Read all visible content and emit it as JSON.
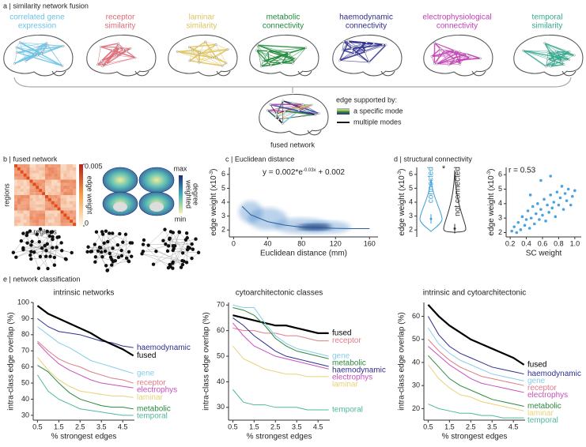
{
  "panels": {
    "a": {
      "title": "a | similarity network fusion",
      "modes": [
        {
          "label": [
            "correlated gene",
            "expression"
          ],
          "color": "#6cc3e6"
        },
        {
          "label": [
            "receptor",
            "similarity"
          ],
          "color": "#dd6b78"
        },
        {
          "label": [
            "laminar",
            "similarity"
          ],
          "color": "#dfc35f"
        },
        {
          "label": [
            "metabolic",
            "connectivity"
          ],
          "color": "#1f8a3a"
        },
        {
          "label": [
            "haemodynamic",
            "connectivity"
          ],
          "color": "#2e2e90"
        },
        {
          "label": [
            "electrophysiological",
            "connectivity"
          ],
          "color": "#c23fb3"
        },
        {
          "label": [
            "temporal",
            "similarity"
          ],
          "color": "#35a88e"
        }
      ],
      "legend_title": "edge supported by:",
      "legend_items": [
        "a specific mode",
        "multiple modes"
      ],
      "fused_label": "fused network"
    },
    "b": {
      "title": "b | fused network",
      "matrix_axis_labels": [
        "regions",
        "regions"
      ],
      "colorbar_label": "edge weight",
      "clim": [
        0,
        0.005
      ],
      "colorbar_ticks": [
        0,
        0.005
      ],
      "degree_label": [
        "weighted",
        "degree"
      ],
      "degree_ticks": [
        "max",
        "min"
      ]
    },
    "d": {
      "title": "d | structural connectivity"
    },
    "e": {
      "title": "e | network classification"
    }
  },
  "chart_data": [
    {
      "type": "line",
      "title": "c | Euclidean distance",
      "equation": [
        "y = 0.002*e",
        "-0.03x",
        " + 0.002"
      ],
      "xlabel": "Euclidean distance (mm)",
      "ylabel": [
        "edge weight (x10",
        "-3",
        ")"
      ],
      "xlim": [
        -5,
        170
      ],
      "ylim": [
        1.5,
        6.5
      ],
      "xticks": [
        0,
        40,
        80,
        120,
        160
      ],
      "yticks": [
        2,
        3,
        4,
        5,
        6
      ],
      "x": [
        10,
        20,
        40,
        60,
        80,
        100,
        120,
        140,
        160
      ],
      "series": [
        {
          "color": "#2b5f9e",
          "values": [
            3.7,
            3.1,
            2.6,
            2.35,
            2.2,
            2.15,
            2.12,
            2.1,
            2.1
          ]
        }
      ]
    },
    {
      "type": "violin",
      "ylabel": [
        "edge weight (x10",
        "-3",
        ")"
      ],
      "ylim": [
        1.5,
        6.5
      ],
      "yticks": [
        2,
        3,
        4,
        5,
        6
      ],
      "annotation": "*",
      "series": [
        {
          "name": "connected",
          "color": "#3a9fd8",
          "median": 2.8,
          "min": 1.9,
          "max": 5.7
        },
        {
          "name": "not connected",
          "color": "#333333",
          "median": 2.1,
          "min": 1.8,
          "max": 6.3
        }
      ]
    },
    {
      "type": "scatter",
      "annotation": "r = 0.53",
      "xlabel": "SC weight",
      "ylabel": [
        "edge weight (x10",
        "-3",
        ")"
      ],
      "xlim": [
        0.15,
        1.08
      ],
      "ylim": [
        1.7,
        6.5
      ],
      "xticks": [
        0.2,
        0.4,
        0.6,
        0.8,
        {
          "value": 1,
          "label": "1.0"
        }
      ],
      "yticks": [
        2,
        3,
        4,
        5,
        6
      ],
      "color": "#4aa3e0",
      "x": [
        0.22,
        0.25,
        0.28,
        0.3,
        0.33,
        0.35,
        0.38,
        0.4,
        0.42,
        0.44,
        0.46,
        0.48,
        0.5,
        0.52,
        0.54,
        0.56,
        0.58,
        0.6,
        0.62,
        0.64,
        0.66,
        0.68,
        0.7,
        0.72,
        0.74,
        0.76,
        0.78,
        0.8,
        0.82,
        0.84,
        0.86,
        0.88,
        0.9,
        0.92,
        0.95,
        0.97,
        1.0,
        0.58,
        0.45,
        0.7
      ],
      "values": [
        2.1,
        2.4,
        2.0,
        2.7,
        2.2,
        3.1,
        2.5,
        2.9,
        3.5,
        2.3,
        3.0,
        3.8,
        2.6,
        3.3,
        4.0,
        2.9,
        3.6,
        3.2,
        4.3,
        2.8,
        3.9,
        3.4,
        4.6,
        3.7,
        4.1,
        3.1,
        4.8,
        3.9,
        4.4,
        5.2,
        3.6,
        4.7,
        4.2,
        5.0,
        3.9,
        4.5,
        4.9,
        5.6,
        4.6,
        5.9
      ]
    },
    {
      "type": "line",
      "title": "intrinsic networks",
      "xlabel": "% strongest edges",
      "ylabel": "intra-class edge overlap (%)",
      "xlim": [
        0.3,
        5.05
      ],
      "ylim": [
        27,
        100
      ],
      "xticks": [
        0.5,
        1.5,
        2.5,
        3.5,
        4.5
      ],
      "yticks": [
        30,
        40,
        50,
        60,
        70,
        80,
        90,
        100
      ],
      "x": [
        0.5,
        1,
        1.5,
        2,
        2.5,
        3,
        3.5,
        4,
        4.5,
        5
      ],
      "series": [
        {
          "name": "haemodynamic",
          "color": "#2e2e90",
          "linewidth": 1,
          "values": [
            90,
            85,
            82,
            81,
            80,
            78,
            76,
            75,
            73,
            72
          ]
        },
        {
          "name": "fused",
          "color": "#000000",
          "linewidth": 2.2,
          "values": [
            98,
            93,
            90,
            87,
            84,
            81,
            77,
            74,
            71,
            67
          ]
        },
        {
          "name": "gene",
          "color": "#86cde8",
          "linewidth": 1,
          "values": [
            85,
            80,
            75,
            72,
            68,
            64,
            62,
            60,
            58,
            56
          ]
        },
        {
          "name": "receptor",
          "color": "#e07b87",
          "linewidth": 1,
          "values": [
            76,
            70,
            65,
            62,
            60,
            57,
            55,
            53,
            52,
            50
          ]
        },
        {
          "name": "electrophys",
          "color": "#c94fbb",
          "linewidth": 1,
          "values": [
            75,
            68,
            62,
            58,
            55,
            52,
            50,
            49,
            48,
            47
          ]
        },
        {
          "name": "laminar",
          "color": "#e8d27a",
          "linewidth": 1,
          "values": [
            66,
            58,
            52,
            48,
            45,
            44,
            43,
            42,
            42,
            41
          ]
        },
        {
          "name": "metabolic",
          "color": "#2c8a3f",
          "linewidth": 1,
          "values": [
            61,
            57,
            50,
            44,
            40,
            38,
            36,
            35,
            35,
            34
          ]
        },
        {
          "name": "temporal",
          "color": "#4fb89e",
          "linewidth": 1,
          "values": [
            55,
            45,
            40,
            37,
            34,
            33,
            32,
            31,
            30,
            30
          ]
        }
      ]
    },
    {
      "type": "line",
      "title": "cytoarchitectonic classes",
      "xlabel": "% strongest edges",
      "ylabel": "intra-class edge overlap (%)",
      "xlim": [
        0.3,
        5.05
      ],
      "ylim": [
        25,
        71
      ],
      "xticks": [
        0.5,
        1.5,
        2.5,
        3.5,
        4.5
      ],
      "yticks": [
        30,
        40,
        50,
        60,
        70
      ],
      "x": [
        0.5,
        1,
        1.5,
        2,
        2.5,
        3,
        3.5,
        4,
        4.5,
        5
      ],
      "series": [
        {
          "name": "fused",
          "color": "#000000",
          "linewidth": 2.2,
          "values": [
            66,
            65,
            64,
            63,
            62,
            62,
            61,
            60,
            59,
            59
          ]
        },
        {
          "name": "receptor",
          "color": "#e07b87",
          "linewidth": 1,
          "values": [
            61,
            60,
            60,
            59,
            59,
            58,
            58,
            57,
            56,
            56
          ]
        },
        {
          "name": "gene",
          "color": "#86cde8",
          "linewidth": 1,
          "values": [
            70,
            69,
            69,
            63,
            58,
            55,
            53,
            52,
            51,
            50
          ]
        },
        {
          "name": "metabolic",
          "color": "#2c8a3f",
          "linewidth": 1,
          "values": [
            69,
            68,
            66,
            62,
            57,
            54,
            52,
            51,
            50,
            49
          ]
        },
        {
          "name": "haemodynamic",
          "color": "#2e2e90",
          "linewidth": 1,
          "values": [
            65,
            62,
            58,
            55,
            52,
            50,
            49,
            48,
            47,
            46
          ]
        },
        {
          "name": "electrophys",
          "color": "#c94fbb",
          "linewidth": 1,
          "values": [
            63,
            58,
            54,
            52,
            50,
            49,
            48,
            47,
            46,
            45
          ]
        },
        {
          "name": "laminar",
          "color": "#e8d27a",
          "linewidth": 1,
          "values": [
            54,
            49,
            47,
            45,
            44,
            43,
            43,
            42,
            42,
            42
          ]
        },
        {
          "name": "temporal",
          "color": "#4fb89e",
          "linewidth": 1,
          "values": [
            37,
            32,
            31,
            31,
            30,
            30,
            30,
            29,
            29,
            29
          ]
        }
      ]
    },
    {
      "type": "line",
      "title": "intrinsic and cytoarchitectonic",
      "xlabel": "% strongest edges",
      "ylabel": "intra-class edge overlap (%)",
      "xlim": [
        0.3,
        5.05
      ],
      "ylim": [
        15,
        66
      ],
      "xticks": [
        0.5,
        1.5,
        2.5,
        3.5,
        4.5
      ],
      "yticks": [
        20,
        30,
        40,
        50,
        60
      ],
      "x": [
        0.5,
        1,
        1.5,
        2,
        2.5,
        3,
        3.5,
        4,
        4.5,
        5
      ],
      "series": [
        {
          "name": "fused",
          "color": "#000000",
          "linewidth": 2.2,
          "values": [
            65,
            60,
            56,
            53,
            50,
            48,
            46,
            44,
            42,
            39
          ]
        },
        {
          "name": "haemodynamic",
          "color": "#2e2e90",
          "linewidth": 1,
          "values": [
            60,
            52,
            47,
            44,
            42,
            40,
            38,
            37,
            36,
            35
          ]
        },
        {
          "name": "gene",
          "color": "#86cde8",
          "linewidth": 1,
          "values": [
            55,
            48,
            44,
            41,
            39,
            37,
            35,
            34,
            33,
            32
          ]
        },
        {
          "name": "receptor",
          "color": "#e07b87",
          "linewidth": 1,
          "values": [
            50,
            45,
            41,
            38,
            36,
            34,
            33,
            32,
            31,
            30
          ]
        },
        {
          "name": "electrophys",
          "color": "#c94fbb",
          "linewidth": 1,
          "values": [
            47,
            43,
            39,
            36,
            33,
            31,
            30,
            29,
            28,
            27
          ]
        },
        {
          "name": "metabolic",
          "color": "#2c8a3f",
          "linewidth": 1,
          "values": [
            43,
            38,
            33,
            30,
            28,
            26,
            24,
            23,
            22,
            21
          ]
        },
        {
          "name": "laminar",
          "color": "#e8d27a",
          "linewidth": 1,
          "values": [
            39,
            33,
            29,
            26,
            25,
            23,
            22,
            21,
            20,
            19
          ]
        },
        {
          "name": "temporal",
          "color": "#4fb89e",
          "linewidth": 1,
          "values": [
            22,
            20,
            19,
            18,
            18,
            17,
            17,
            16,
            16,
            16
          ]
        }
      ]
    }
  ]
}
